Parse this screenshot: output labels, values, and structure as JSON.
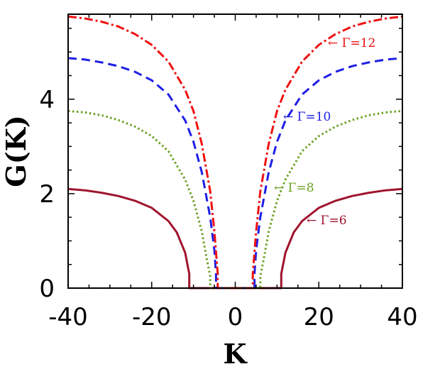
{
  "chart_data": {
    "type": "line",
    "xlabel": "K",
    "ylabel": "G(K)",
    "xlim": [
      -40,
      40
    ],
    "ylim": [
      0,
      5.8
    ],
    "xticks": [
      -40,
      -20,
      0,
      20,
      40
    ],
    "yticks": [
      0,
      2,
      4
    ],
    "grid": false,
    "legend": "none",
    "series": [
      {
        "style": "solid",
        "color": "#a0142e",
        "label": "← Γ=6",
        "x": [
          -40,
          -36,
          -32,
          -28,
          -24,
          -20,
          -16,
          -14,
          -12,
          -11,
          -11,
          11,
          11,
          12,
          14,
          16,
          20,
          24,
          28,
          32,
          36,
          40
        ],
        "y": [
          2.1,
          2.07,
          2.02,
          1.95,
          1.85,
          1.7,
          1.42,
          1.18,
          0.75,
          0.3,
          0,
          0,
          0.3,
          0.75,
          1.18,
          1.42,
          1.7,
          1.85,
          1.95,
          2.02,
          2.07,
          2.1
        ]
      },
      {
        "style": "dotted",
        "color": "#6aa122",
        "label": "← Γ=8",
        "x": [
          -40,
          -36,
          -32,
          -28,
          -24,
          -20,
          -16,
          -12,
          -10,
          -8,
          -7,
          -6,
          -6,
          6,
          6,
          7,
          8,
          10,
          12,
          16,
          20,
          24,
          28,
          32,
          36,
          40
        ],
        "y": [
          3.75,
          3.72,
          3.66,
          3.56,
          3.42,
          3.22,
          2.9,
          2.3,
          1.85,
          1.2,
          0.7,
          0.25,
          0,
          0,
          0.25,
          0.7,
          1.2,
          1.85,
          2.3,
          2.9,
          3.22,
          3.42,
          3.56,
          3.66,
          3.72,
          3.75
        ]
      },
      {
        "style": "dashed",
        "color": "#1f1fe6",
        "label": "← Γ=10",
        "x": [
          -40,
          -36,
          -32,
          -28,
          -24,
          -20,
          -16,
          -12,
          -10,
          -8,
          -6,
          -5,
          -4.6,
          -4.6,
          4.6,
          4.6,
          5,
          6,
          8,
          10,
          12,
          16,
          20,
          24,
          28,
          32,
          36,
          40
        ],
        "y": [
          4.87,
          4.84,
          4.78,
          4.7,
          4.58,
          4.4,
          4.1,
          3.55,
          3.1,
          2.45,
          1.5,
          0.8,
          0.3,
          0,
          0,
          0.3,
          0.8,
          1.5,
          2.45,
          3.1,
          3.55,
          4.1,
          4.4,
          4.58,
          4.7,
          4.78,
          4.84,
          4.87
        ]
      },
      {
        "style": "dashdot",
        "color": "#ee1111",
        "label": "← Γ=12",
        "x": [
          -40,
          -36,
          -32,
          -28,
          -24,
          -20,
          -16,
          -12,
          -10,
          -8,
          -6,
          -5,
          -4.2,
          -4.2,
          4.2,
          4.2,
          5,
          6,
          8,
          10,
          12,
          16,
          20,
          24,
          28,
          32,
          36,
          40
        ],
        "y": [
          5.75,
          5.71,
          5.64,
          5.54,
          5.38,
          5.15,
          4.8,
          4.2,
          3.75,
          3.05,
          2.05,
          1.2,
          0.3,
          0,
          0,
          0.3,
          1.2,
          2.05,
          3.05,
          3.75,
          4.2,
          4.8,
          5.15,
          5.38,
          5.54,
          5.64,
          5.71,
          5.75
        ]
      }
    ]
  }
}
